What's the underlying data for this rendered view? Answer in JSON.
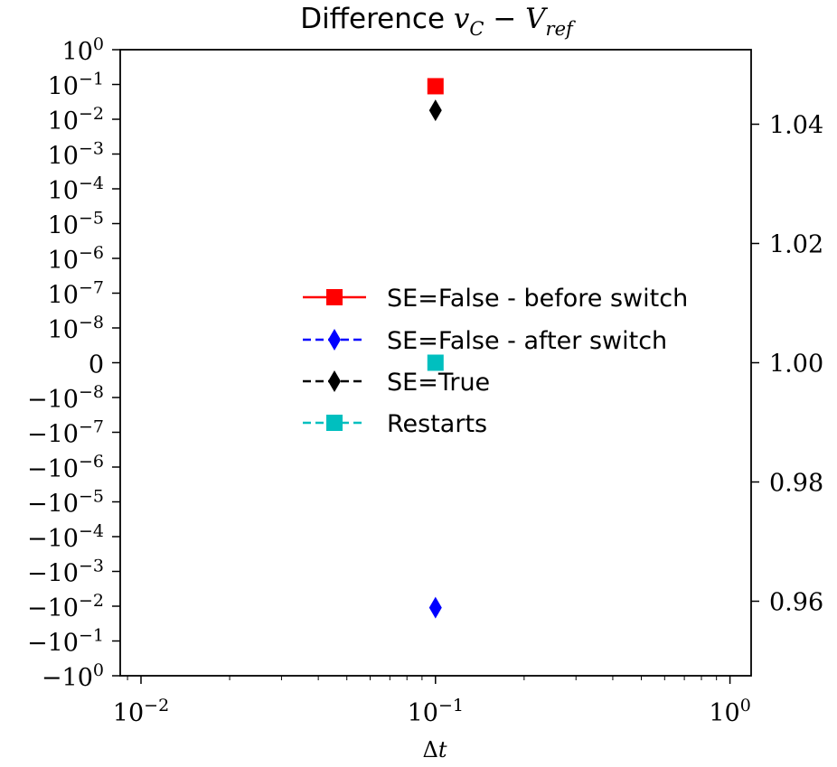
{
  "chart_data": {
    "type": "scatter",
    "title": {
      "prefix": "Difference ",
      "var1": "v",
      "sub1": "C",
      "op": " − ",
      "var2": "V",
      "sub2": "ref"
    },
    "xlabel": {
      "delta": "Δ",
      "var": "t"
    },
    "x_axis": {
      "scale": "log",
      "range": [
        0.0085,
        1.18
      ],
      "ticks": [
        {
          "value": 0.01,
          "base": "10",
          "exp": "−2"
        },
        {
          "value": 0.1,
          "base": "10",
          "exp": "−1"
        },
        {
          "value": 1,
          "base": "10",
          "exp": "0"
        }
      ]
    },
    "y_axis_left": {
      "scale": "symlog",
      "ticks": [
        {
          "base": "10",
          "exp": "0"
        },
        {
          "base": "10",
          "exp": "−1"
        },
        {
          "base": "10",
          "exp": "−2"
        },
        {
          "base": "10",
          "exp": "−3"
        },
        {
          "base": "10",
          "exp": "−4"
        },
        {
          "base": "10",
          "exp": "−5"
        },
        {
          "base": "10",
          "exp": "−6"
        },
        {
          "base": "10",
          "exp": "−7"
        },
        {
          "base": "10",
          "exp": "−8"
        },
        {
          "base": "0",
          "exp": ""
        },
        {
          "base": "−10",
          "exp": "−8"
        },
        {
          "base": "−10",
          "exp": "−7"
        },
        {
          "base": "−10",
          "exp": "−6"
        },
        {
          "base": "−10",
          "exp": "−5"
        },
        {
          "base": "−10",
          "exp": "−4"
        },
        {
          "base": "−10",
          "exp": "−3"
        },
        {
          "base": "−10",
          "exp": "−2"
        },
        {
          "base": "−10",
          "exp": "−1"
        },
        {
          "base": "−10",
          "exp": "0"
        }
      ]
    },
    "y_axis_right": {
      "scale": "linear",
      "range": [
        0.9475,
        1.0525
      ],
      "ticks": [
        "0.96",
        "0.98",
        "1.00",
        "1.02",
        "1.04"
      ]
    },
    "series": [
      {
        "name": "SE=False - before switch",
        "color": "#ff0000",
        "marker": "square",
        "line": "solid",
        "x": [
          0.1
        ],
        "y": [
          0.089
        ]
      },
      {
        "name": "SE=False - after switch",
        "color": "#0000ff",
        "marker": "diamond",
        "line": "dashed",
        "x": [
          0.1
        ],
        "y": [
          -0.011
        ]
      },
      {
        "name": "SE=True",
        "color": "#000000",
        "marker": "diamond",
        "line": "dashed",
        "x": [
          0.1
        ],
        "y": [
          0.018
        ]
      },
      {
        "name": "Restarts",
        "color": "#00bfbf",
        "marker": "square",
        "line": "dashed",
        "axis": "right",
        "x": [
          0.1
        ],
        "y": [
          1.0
        ]
      }
    ],
    "legend_position": "center-right",
    "grid": false
  }
}
